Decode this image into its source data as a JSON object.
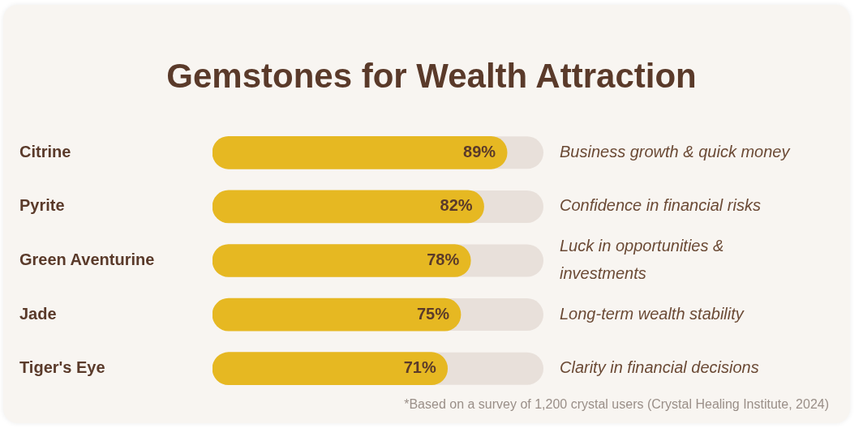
{
  "chart_data": {
    "type": "bar",
    "orientation": "horizontal",
    "title": "Gemstones for Wealth Attraction",
    "categories": [
      "Citrine",
      "Pyrite",
      "Green Aventurine",
      "Jade",
      "Tiger's Eye"
    ],
    "values": [
      89,
      82,
      78,
      75,
      71
    ],
    "value_labels": [
      "89%",
      "82%",
      "78%",
      "75%",
      "71%"
    ],
    "color": "#e6b822",
    "xlim": [
      0,
      100
    ],
    "annotations": [
      "Business growth & quick money",
      "Confidence in financial risks",
      "Luck in opportunities & investments",
      "Long-term wealth stability",
      "Clarity in financial decisions",
      "*Based on a survey of 1,200 crystal users (Crystal Healing Institute, 2024)"
    ]
  }
}
